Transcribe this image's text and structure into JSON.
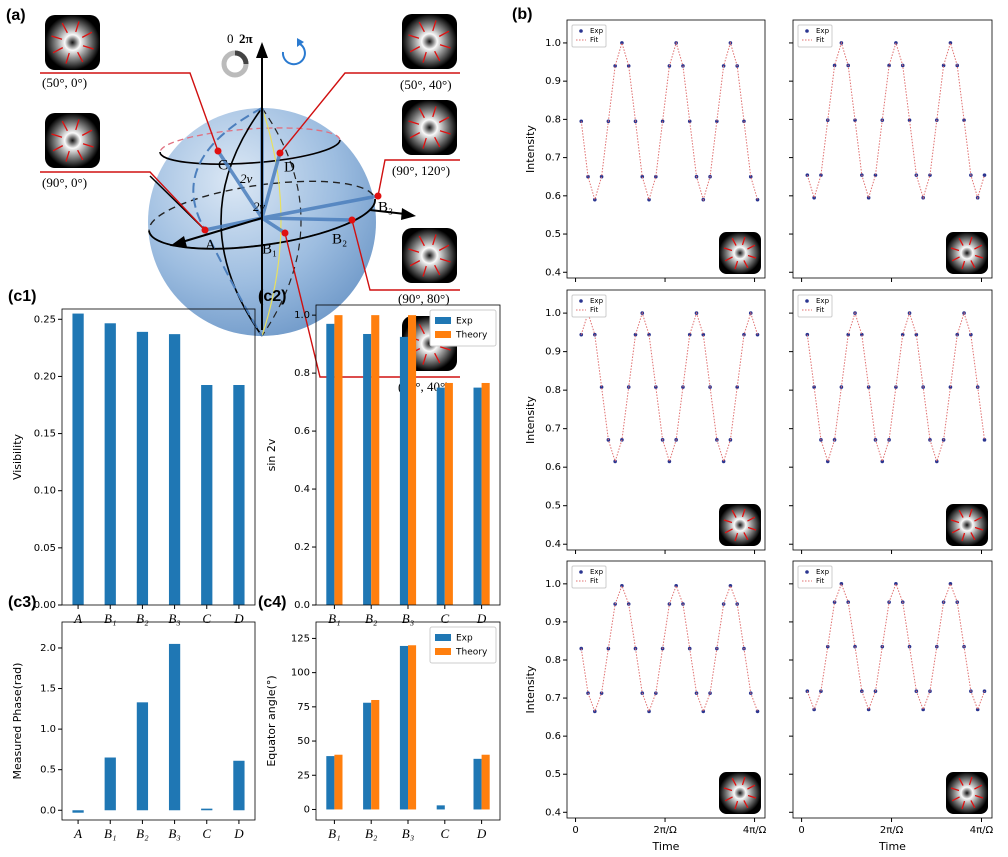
{
  "diagram": {
    "label": "(a)",
    "points": [
      "A",
      "B₁",
      "B₂",
      "B₃",
      "C",
      "D"
    ],
    "angles": [
      "2v",
      "2γ"
    ],
    "phase_scale": [
      "0",
      "2π"
    ],
    "states": [
      "(50°, 0°)",
      "(90°, 0°)",
      "(50°, 40°)",
      "(90°, 120°)",
      "(90°, 80°)",
      "(90°, 40°)"
    ]
  },
  "chart_data": [
    {
      "type": "bar",
      "panel_label": "(c1)",
      "y_label": "Visibility",
      "categories": [
        "A",
        "B₁",
        "B₂",
        "B₃",
        "C",
        "D"
      ],
      "values": [
        0.255,
        0.2465,
        0.239,
        0.237,
        0.1925,
        0.1925
      ],
      "color": "#1f77b4",
      "ylim": [
        0,
        0.259
      ],
      "yticks": [
        {
          "value": 0,
          "label": "0.00"
        },
        0.05,
        {
          "value": 0.1,
          "label": "0.10"
        },
        0.15,
        {
          "value": 0.2,
          "label": "0.20"
        },
        0.25
      ]
    },
    {
      "type": "bar",
      "panel_label": "(c2)",
      "y_label": "sin 2v",
      "categories": [
        "B₁",
        "B₂",
        "B₃",
        "C",
        "D"
      ],
      "series": [
        {
          "name": "Exp",
          "color": "#1f77b4",
          "values": [
            0.97,
            0.935,
            0.925,
            0.75,
            0.75
          ]
        },
        {
          "name": "Theory",
          "color": "#ff7f0e",
          "values": [
            1,
            1,
            1,
            0.766,
            0.766
          ]
        }
      ],
      "legend": "upper right",
      "ylim": [
        0,
        1.035
      ],
      "yticks": [
        {
          "value": 0,
          "label": "0.0"
        },
        0.2,
        0.4,
        0.6,
        0.8,
        {
          "value": 1,
          "label": "1.0"
        }
      ]
    },
    {
      "type": "bar",
      "panel_label": "(c3)",
      "y_label": "Measured Phase(rad)",
      "categories": [
        "A",
        "B₁",
        "B₂",
        "B₃",
        "C",
        "D"
      ],
      "values": [
        -0.03,
        0.65,
        1.33,
        2.05,
        0.02,
        0.61
      ],
      "color": "#1f77b4",
      "ylim": [
        -0.12,
        2.32
      ],
      "yticks": [
        {
          "value": 0,
          "label": "0.0"
        },
        0.5,
        {
          "value": 1,
          "label": "1.0"
        },
        1.5,
        {
          "value": 2,
          "label": "2.0"
        }
      ]
    },
    {
      "type": "bar",
      "panel_label": "(c4)",
      "y_label": "Equator angle(°)",
      "categories": [
        "B₁",
        "B₂",
        "B₃",
        "C",
        "D"
      ],
      "series": [
        {
          "name": "Exp",
          "color": "#1f77b4",
          "values": [
            39,
            78,
            119.5,
            3,
            37
          ]
        },
        {
          "name": "Theory",
          "color": "#ff7f0e",
          "values": [
            40,
            80,
            120,
            0,
            40
          ]
        }
      ],
      "legend": "upper right",
      "ylim": [
        -7.7,
        137
      ],
      "yticks": [
        0,
        25,
        50,
        75,
        100,
        125
      ]
    },
    {
      "type": "scatter",
      "panel_label": "(b)",
      "y_label": "Intensity",
      "legend": "upper left",
      "x": [
        0.4,
        0.876,
        1.352,
        1.828,
        2.304,
        2.78,
        3.256,
        3.732,
        4.208,
        4.684,
        5.16,
        5.636,
        6.112,
        6.588,
        7.064,
        7.54,
        8.016,
        8.492,
        8.968,
        9.444,
        9.92,
        10.396,
        10.872,
        11.348,
        11.824,
        12.3,
        12.776
      ],
      "series": [
        {
          "name": "Exp",
          "color": "#2a3590",
          "style": "markers",
          "values": [
            0.795,
            0.65,
            0.59,
            0.65,
            0.795,
            0.94,
            1.0,
            0.94,
            0.795,
            0.65,
            0.59,
            0.65,
            0.795,
            0.94,
            1.0,
            0.94,
            0.795,
            0.65,
            0.59,
            0.65,
            0.795,
            0.94,
            1.0,
            0.94,
            0.795,
            0.65,
            0.59
          ]
        },
        {
          "name": "Fit",
          "color": "#e07070",
          "style": "dotted",
          "values": [
            0.795,
            0.65,
            0.59,
            0.65,
            0.795,
            0.94,
            1.0,
            0.94,
            0.795,
            0.65,
            0.59,
            0.65,
            0.795,
            0.94,
            1.0,
            0.94,
            0.795,
            0.65,
            0.59,
            0.65,
            0.795,
            0.94,
            1.0,
            0.94,
            0.795,
            0.65,
            0.59
          ]
        }
      ],
      "xlim": [
        -0.6,
        13.3
      ],
      "xticks": [
        0,
        6.283,
        12.566
      ],
      "xtick_labels": false,
      "ylim": [
        0.385,
        1.06
      ],
      "yticks": [
        0.4,
        0.5,
        0.6,
        0.7,
        0.8,
        0.9,
        {
          "value": 1,
          "label": "1.0"
        }
      ]
    },
    {
      "type": "scatter",
      "legend": "upper left",
      "x": [
        0.4,
        0.876,
        1.352,
        1.828,
        2.304,
        2.78,
        3.256,
        3.732,
        4.208,
        4.684,
        5.16,
        5.636,
        6.112,
        6.588,
        7.064,
        7.54,
        8.016,
        8.492,
        8.968,
        9.444,
        9.92,
        10.396,
        10.872,
        11.348,
        11.824,
        12.3,
        12.776
      ],
      "series": [
        {
          "name": "Exp",
          "color": "#2a3590",
          "style": "markers",
          "values": [
            0.654,
            0.595,
            0.654,
            0.798,
            0.941,
            1.0,
            0.941,
            0.798,
            0.654,
            0.595,
            0.654,
            0.798,
            0.941,
            1.0,
            0.941,
            0.798,
            0.654,
            0.595,
            0.654,
            0.798,
            0.941,
            1.0,
            0.941,
            0.798,
            0.654,
            0.595,
            0.654
          ]
        },
        {
          "name": "Fit",
          "color": "#e07070",
          "style": "dotted",
          "values": [
            0.654,
            0.595,
            0.654,
            0.798,
            0.941,
            1.0,
            0.941,
            0.798,
            0.654,
            0.595,
            0.654,
            0.798,
            0.941,
            1.0,
            0.941,
            0.798,
            0.654,
            0.595,
            0.654,
            0.798,
            0.941,
            1.0,
            0.941,
            0.798,
            0.654,
            0.595,
            0.654
          ]
        }
      ],
      "xlim": [
        -0.6,
        13.3
      ],
      "xticks": [
        0,
        6.283,
        12.566
      ],
      "xtick_labels": false,
      "ylim": [
        0.385,
        1.06
      ],
      "yticks": [
        0.4,
        0.5,
        0.6,
        0.7,
        0.8,
        0.9,
        1
      ],
      "ytick_labels": false
    },
    {
      "type": "scatter",
      "y_label": "Intensity",
      "legend": "upper left",
      "x": [
        0.4,
        0.876,
        1.352,
        1.828,
        2.304,
        2.78,
        3.256,
        3.732,
        4.208,
        4.684,
        5.16,
        5.636,
        6.112,
        6.588,
        7.064,
        7.54,
        8.016,
        8.492,
        8.968,
        9.444,
        9.92,
        10.396,
        10.872,
        11.348,
        11.824,
        12.3,
        12.776
      ],
      "series": [
        {
          "name": "Exp",
          "color": "#2a3590",
          "style": "markers",
          "values": [
            0.944,
            1.0,
            0.944,
            0.808,
            0.671,
            0.615,
            0.671,
            0.808,
            0.944,
            1.0,
            0.944,
            0.808,
            0.671,
            0.615,
            0.671,
            0.808,
            0.944,
            1.0,
            0.944,
            0.808,
            0.671,
            0.615,
            0.671,
            0.808,
            0.944,
            1.0,
            0.944
          ]
        },
        {
          "name": "Fit",
          "color": "#e07070",
          "style": "dotted",
          "values": [
            0.944,
            1.0,
            0.944,
            0.808,
            0.671,
            0.615,
            0.671,
            0.808,
            0.944,
            1.0,
            0.944,
            0.808,
            0.671,
            0.615,
            0.671,
            0.808,
            0.944,
            1.0,
            0.944,
            0.808,
            0.671,
            0.615,
            0.671,
            0.808,
            0.944,
            1.0,
            0.944
          ]
        }
      ],
      "xlim": [
        -0.6,
        13.3
      ],
      "xticks": [
        0,
        6.283,
        12.566
      ],
      "xtick_labels": false,
      "ylim": [
        0.385,
        1.06
      ],
      "yticks": [
        0.4,
        0.5,
        0.6,
        0.7,
        0.8,
        0.9,
        {
          "value": 1,
          "label": "1.0"
        }
      ]
    },
    {
      "type": "scatter",
      "legend": "upper left",
      "x": [
        0.4,
        0.876,
        1.352,
        1.828,
        2.304,
        2.78,
        3.256,
        3.732,
        4.208,
        4.684,
        5.16,
        5.636,
        6.112,
        6.588,
        7.064,
        7.54,
        8.016,
        8.492,
        8.968,
        9.444,
        9.92,
        10.396,
        10.872,
        11.348,
        11.824,
        12.3,
        12.776
      ],
      "series": [
        {
          "name": "Exp",
          "color": "#2a3590",
          "style": "markers",
          "values": [
            0.944,
            0.808,
            0.671,
            0.615,
            0.671,
            0.808,
            0.944,
            1.0,
            0.944,
            0.808,
            0.671,
            0.615,
            0.671,
            0.808,
            0.944,
            1.0,
            0.944,
            0.808,
            0.671,
            0.615,
            0.671,
            0.808,
            0.944,
            1.0,
            0.944,
            0.808,
            0.671
          ]
        },
        {
          "name": "Fit",
          "color": "#e07070",
          "style": "dotted",
          "values": [
            0.944,
            0.808,
            0.671,
            0.615,
            0.671,
            0.808,
            0.944,
            1.0,
            0.944,
            0.808,
            0.671,
            0.615,
            0.671,
            0.808,
            0.944,
            1.0,
            0.944,
            0.808,
            0.671,
            0.615,
            0.671,
            0.808,
            0.944,
            1.0,
            0.944,
            0.808,
            0.671
          ]
        }
      ],
      "xlim": [
        -0.6,
        13.3
      ],
      "xticks": [
        0,
        6.283,
        12.566
      ],
      "xtick_labels": false,
      "ylim": [
        0.385,
        1.06
      ],
      "yticks": [
        0.4,
        0.5,
        0.6,
        0.7,
        0.8,
        0.9,
        1
      ],
      "ytick_labels": false
    },
    {
      "type": "scatter",
      "y_label": "Intensity",
      "x_label": "Time",
      "legend": "upper left",
      "x": [
        0.4,
        0.876,
        1.352,
        1.828,
        2.304,
        2.78,
        3.256,
        3.732,
        4.208,
        4.684,
        5.16,
        5.636,
        6.112,
        6.588,
        7.064,
        7.54,
        8.016,
        8.492,
        8.968,
        9.444,
        9.92,
        10.396,
        10.872,
        11.348,
        11.824,
        12.3,
        12.776
      ],
      "series": [
        {
          "name": "Exp",
          "color": "#2a3590",
          "style": "markers",
          "values": [
            0.83,
            0.713,
            0.665,
            0.713,
            0.83,
            0.947,
            0.995,
            0.947,
            0.83,
            0.713,
            0.665,
            0.713,
            0.83,
            0.947,
            0.995,
            0.947,
            0.83,
            0.713,
            0.665,
            0.713,
            0.83,
            0.947,
            0.995,
            0.947,
            0.83,
            0.713,
            0.665
          ]
        },
        {
          "name": "Fit",
          "color": "#e07070",
          "style": "dotted",
          "values": [
            0.83,
            0.713,
            0.665,
            0.713,
            0.83,
            0.947,
            0.995,
            0.947,
            0.83,
            0.713,
            0.665,
            0.713,
            0.83,
            0.947,
            0.995,
            0.947,
            0.83,
            0.713,
            0.665,
            0.713,
            0.83,
            0.947,
            0.995,
            0.947,
            0.83,
            0.713,
            0.665
          ]
        }
      ],
      "xlim": [
        -0.6,
        13.3
      ],
      "xticks": [
        0,
        {
          "value": 6.283,
          "label": "2π/Ω"
        },
        {
          "value": 12.566,
          "label": "4π/Ω"
        }
      ],
      "ylim": [
        0.385,
        1.06
      ],
      "yticks": [
        0.4,
        0.5,
        0.6,
        0.7,
        0.8,
        0.9,
        {
          "value": 1,
          "label": "1.0"
        }
      ]
    },
    {
      "type": "scatter",
      "x_label": "Time",
      "legend": "upper left",
      "x": [
        0.4,
        0.876,
        1.352,
        1.828,
        2.304,
        2.78,
        3.256,
        3.732,
        4.208,
        4.684,
        5.16,
        5.636,
        6.112,
        6.588,
        7.064,
        7.54,
        8.016,
        8.492,
        8.968,
        9.444,
        9.92,
        10.396,
        10.872,
        11.348,
        11.824,
        12.3,
        12.776
      ],
      "series": [
        {
          "name": "Exp",
          "color": "#2a3590",
          "style": "markers",
          "values": [
            0.718,
            0.67,
            0.718,
            0.835,
            0.952,
            1.0,
            0.952,
            0.835,
            0.718,
            0.67,
            0.718,
            0.835,
            0.952,
            1.0,
            0.952,
            0.835,
            0.718,
            0.67,
            0.718,
            0.835,
            0.952,
            1.0,
            0.952,
            0.835,
            0.718,
            0.67,
            0.718
          ]
        },
        {
          "name": "Fit",
          "color": "#e07070",
          "style": "dotted",
          "values": [
            0.718,
            0.67,
            0.718,
            0.835,
            0.952,
            1.0,
            0.952,
            0.835,
            0.718,
            0.67,
            0.718,
            0.835,
            0.952,
            1.0,
            0.952,
            0.835,
            0.718,
            0.67,
            0.718,
            0.835,
            0.952,
            1.0,
            0.952,
            0.835,
            0.718,
            0.67,
            0.718
          ]
        }
      ],
      "xlim": [
        -0.6,
        13.3
      ],
      "xticks": [
        0,
        {
          "value": 6.283,
          "label": "2π/Ω"
        },
        {
          "value": 12.566,
          "label": "4π/Ω"
        }
      ],
      "ylim": [
        0.385,
        1.06
      ],
      "yticks": [
        0.4,
        0.5,
        0.6,
        0.7,
        0.8,
        0.9,
        1
      ],
      "ytick_labels": false
    }
  ]
}
